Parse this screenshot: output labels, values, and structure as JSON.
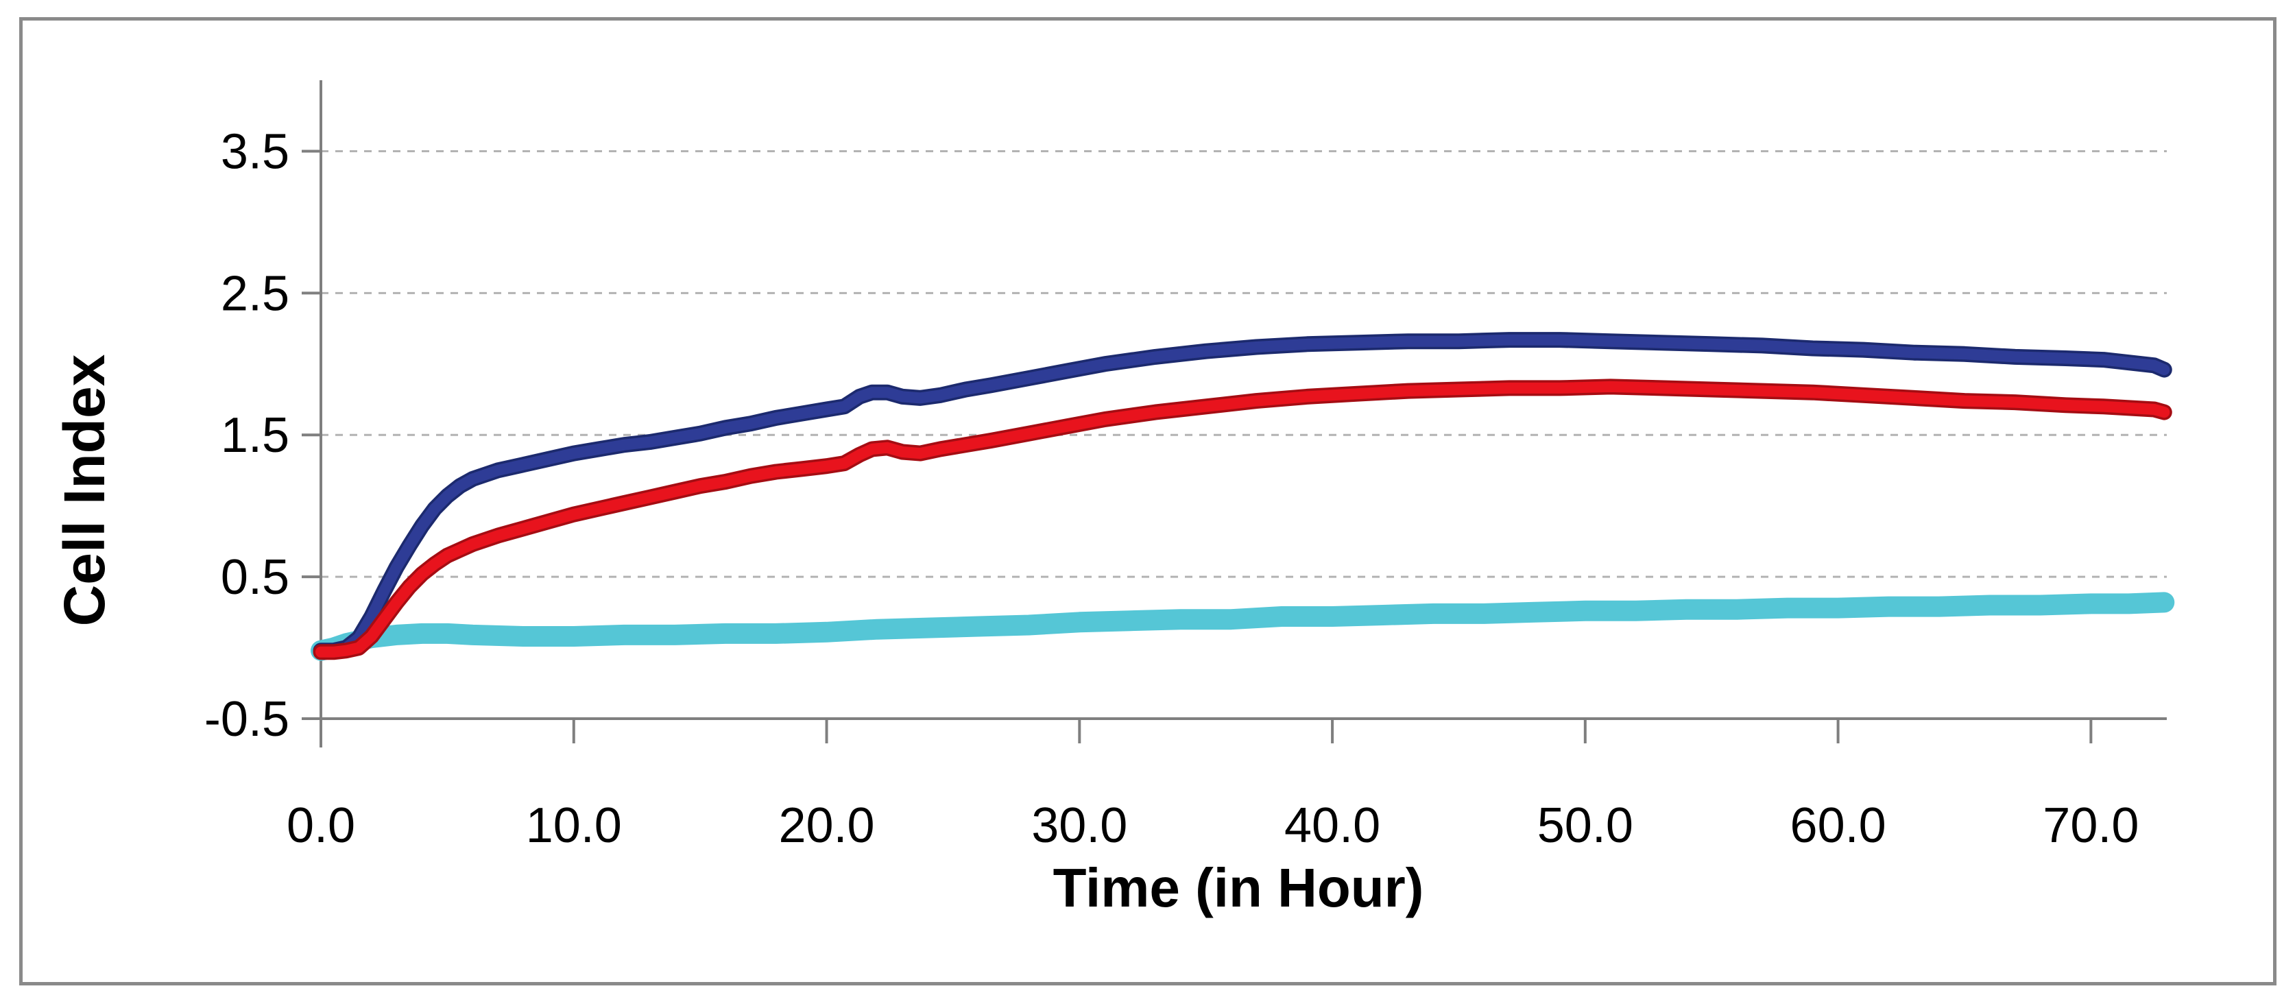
{
  "chart_data": {
    "type": "line",
    "title": "",
    "xlabel": "Time (in Hour)",
    "ylabel": "Cell Index",
    "xlim": [
      0,
      73
    ],
    "ylim": [
      -0.5,
      4.0
    ],
    "grid": {
      "horizontal_dashed": true,
      "color": "#b3b3b3"
    },
    "legend_position": "none",
    "axis_color": "#7f7f7f",
    "x_ticks": {
      "values": [
        0,
        10,
        20,
        30,
        40,
        50,
        60,
        70
      ],
      "labels": [
        "0.0",
        "10.0",
        "20.0",
        "30.0",
        "40.0",
        "50.0",
        "60.0",
        "70.0"
      ]
    },
    "y_ticks": {
      "values": [
        -0.5,
        0.5,
        1.5,
        2.5,
        3.5
      ],
      "labels": [
        "-0.5",
        "0.5",
        "1.5",
        "2.5",
        "3.5"
      ]
    },
    "series": [
      {
        "name": "light-blue-flat-series",
        "color": "#55c6d6",
        "edge": "",
        "width": 30,
        "points": [
          [
            0,
            -0.02
          ],
          [
            0.5,
            0.0
          ],
          [
            1,
            0.03
          ],
          [
            1.5,
            0.05
          ],
          [
            2,
            0.07
          ],
          [
            3,
            0.09
          ],
          [
            4,
            0.1
          ],
          [
            5,
            0.1
          ],
          [
            6,
            0.09
          ],
          [
            8,
            0.08
          ],
          [
            10,
            0.08
          ],
          [
            12,
            0.09
          ],
          [
            14,
            0.09
          ],
          [
            16,
            0.1
          ],
          [
            18,
            0.1
          ],
          [
            20,
            0.11
          ],
          [
            22,
            0.13
          ],
          [
            24,
            0.14
          ],
          [
            26,
            0.15
          ],
          [
            28,
            0.16
          ],
          [
            30,
            0.18
          ],
          [
            32,
            0.19
          ],
          [
            34,
            0.2
          ],
          [
            36,
            0.2
          ],
          [
            38,
            0.22
          ],
          [
            40,
            0.22
          ],
          [
            42,
            0.23
          ],
          [
            44,
            0.24
          ],
          [
            46,
            0.24
          ],
          [
            48,
            0.25
          ],
          [
            50,
            0.26
          ],
          [
            52,
            0.26
          ],
          [
            54,
            0.27
          ],
          [
            56,
            0.27
          ],
          [
            58,
            0.28
          ],
          [
            60,
            0.28
          ],
          [
            62,
            0.29
          ],
          [
            64,
            0.29
          ],
          [
            66,
            0.3
          ],
          [
            68,
            0.3
          ],
          [
            70,
            0.31
          ],
          [
            71.5,
            0.31
          ],
          [
            72.9,
            0.32
          ]
        ]
      },
      {
        "name": "dark-blue-series",
        "color": "#2e3c96",
        "edge": "#1c2a6e",
        "width": 16,
        "points": [
          [
            0,
            -0.02
          ],
          [
            0.5,
            -0.02
          ],
          [
            1,
            0.0
          ],
          [
            1.5,
            0.07
          ],
          [
            2,
            0.22
          ],
          [
            2.5,
            0.4
          ],
          [
            3,
            0.57
          ],
          [
            3.5,
            0.72
          ],
          [
            4,
            0.86
          ],
          [
            4.5,
            0.98
          ],
          [
            5,
            1.07
          ],
          [
            5.5,
            1.14
          ],
          [
            6,
            1.19
          ],
          [
            7,
            1.25
          ],
          [
            8,
            1.29
          ],
          [
            9,
            1.33
          ],
          [
            10,
            1.37
          ],
          [
            11,
            1.4
          ],
          [
            12,
            1.43
          ],
          [
            13,
            1.45
          ],
          [
            14,
            1.48
          ],
          [
            15,
            1.51
          ],
          [
            16,
            1.55
          ],
          [
            17,
            1.58
          ],
          [
            18,
            1.62
          ],
          [
            19,
            1.65
          ],
          [
            20,
            1.68
          ],
          [
            20.7,
            1.7
          ],
          [
            21.3,
            1.77
          ],
          [
            21.8,
            1.8
          ],
          [
            22.4,
            1.8
          ],
          [
            23,
            1.77
          ],
          [
            23.7,
            1.76
          ],
          [
            24.5,
            1.78
          ],
          [
            25.5,
            1.82
          ],
          [
            26.5,
            1.85
          ],
          [
            28,
            1.9
          ],
          [
            29.5,
            1.95
          ],
          [
            31,
            2.0
          ],
          [
            33,
            2.05
          ],
          [
            35,
            2.09
          ],
          [
            37,
            2.12
          ],
          [
            39,
            2.14
          ],
          [
            41,
            2.15
          ],
          [
            43,
            2.16
          ],
          [
            45,
            2.16
          ],
          [
            47,
            2.17
          ],
          [
            49,
            2.17
          ],
          [
            51,
            2.16
          ],
          [
            53,
            2.15
          ],
          [
            55,
            2.14
          ],
          [
            57,
            2.13
          ],
          [
            59,
            2.11
          ],
          [
            61,
            2.1
          ],
          [
            63,
            2.08
          ],
          [
            65,
            2.07
          ],
          [
            67,
            2.05
          ],
          [
            69,
            2.04
          ],
          [
            70.5,
            2.03
          ],
          [
            71.5,
            2.01
          ],
          [
            72.5,
            1.99
          ],
          [
            72.9,
            1.96
          ]
        ]
      },
      {
        "name": "red-series",
        "color": "#e8131d",
        "edge": "#a50d13",
        "width": 16,
        "points": [
          [
            0,
            -0.03
          ],
          [
            0.5,
            -0.03
          ],
          [
            1,
            -0.02
          ],
          [
            1.5,
            0.0
          ],
          [
            2,
            0.08
          ],
          [
            2.5,
            0.2
          ],
          [
            3,
            0.32
          ],
          [
            3.5,
            0.43
          ],
          [
            4,
            0.52
          ],
          [
            4.5,
            0.59
          ],
          [
            5,
            0.65
          ],
          [
            5.5,
            0.69
          ],
          [
            6,
            0.73
          ],
          [
            7,
            0.79
          ],
          [
            8,
            0.84
          ],
          [
            9,
            0.89
          ],
          [
            10,
            0.94
          ],
          [
            11,
            0.98
          ],
          [
            12,
            1.02
          ],
          [
            13,
            1.06
          ],
          [
            14,
            1.1
          ],
          [
            15,
            1.14
          ],
          [
            16,
            1.17
          ],
          [
            17,
            1.21
          ],
          [
            18,
            1.24
          ],
          [
            19,
            1.26
          ],
          [
            20,
            1.28
          ],
          [
            20.7,
            1.3
          ],
          [
            21.3,
            1.36
          ],
          [
            21.8,
            1.4
          ],
          [
            22.4,
            1.41
          ],
          [
            23,
            1.38
          ],
          [
            23.7,
            1.37
          ],
          [
            24.5,
            1.4
          ],
          [
            25.5,
            1.43
          ],
          [
            26.5,
            1.46
          ],
          [
            28,
            1.51
          ],
          [
            29.5,
            1.56
          ],
          [
            31,
            1.61
          ],
          [
            33,
            1.66
          ],
          [
            35,
            1.7
          ],
          [
            37,
            1.74
          ],
          [
            39,
            1.77
          ],
          [
            41,
            1.79
          ],
          [
            43,
            1.81
          ],
          [
            45,
            1.82
          ],
          [
            47,
            1.83
          ],
          [
            49,
            1.83
          ],
          [
            51,
            1.84
          ],
          [
            53,
            1.83
          ],
          [
            55,
            1.82
          ],
          [
            57,
            1.81
          ],
          [
            59,
            1.8
          ],
          [
            61,
            1.78
          ],
          [
            63,
            1.76
          ],
          [
            65,
            1.74
          ],
          [
            67,
            1.73
          ],
          [
            69,
            1.71
          ],
          [
            70.5,
            1.7
          ],
          [
            71.5,
            1.69
          ],
          [
            72.5,
            1.68
          ],
          [
            72.9,
            1.66
          ]
        ]
      }
    ]
  }
}
